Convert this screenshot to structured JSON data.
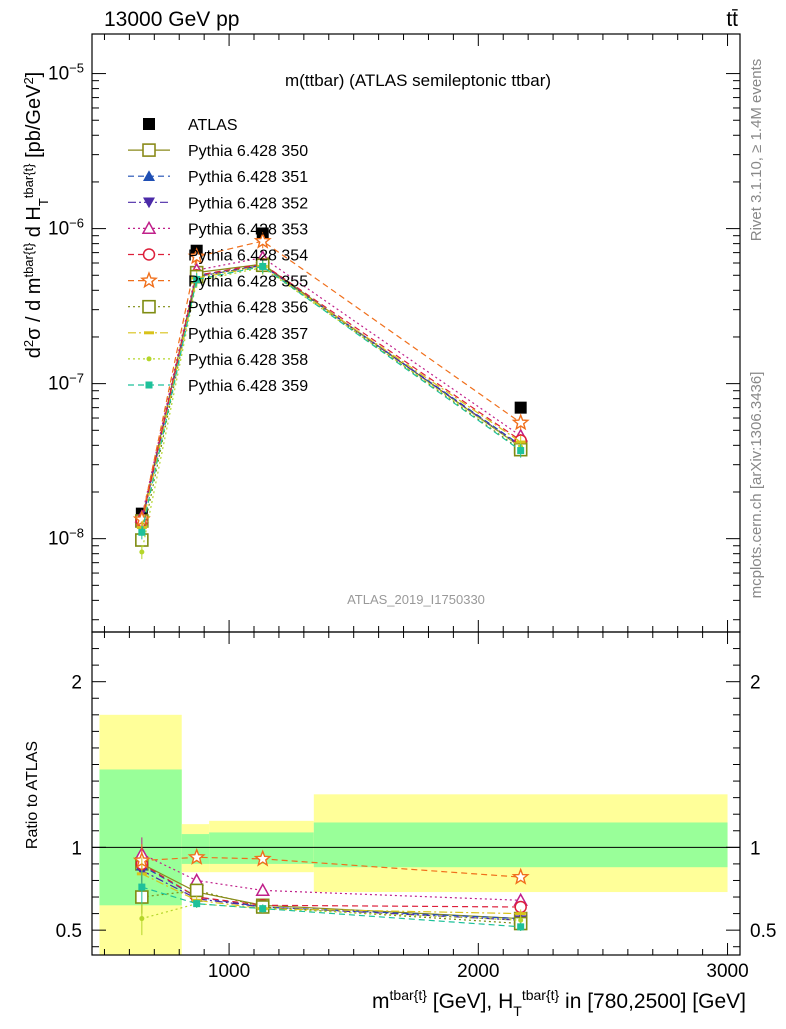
{
  "header": {
    "energy": "13000 GeV pp",
    "process": "tt̄",
    "plot_title": "m(ttbar) (ATLAS semileptonic ttbar)",
    "analysis_id": "ATLAS_2019_I1750330",
    "side_rivet": "Rivet 3.1.10, ≥ 1.4M events",
    "side_mcplots": "mcplots.cern.ch [arXiv:1306.3436]"
  },
  "colors": {
    "data": "#000000",
    "band_inner": "#99ff99",
    "band_outer": "#ffff99"
  },
  "chart_data": [
    {
      "type": "scatter",
      "panel": "main",
      "xlabel": "m^{tbar{t}} [GeV], H_T^{tbar{t}} in [780,2500] [GeV]",
      "ylabel": "d²σ / d m^{tbar{t}} d H_T^{tbar{t}} [pb/GeV²]",
      "yscale": "log",
      "xlim": [
        450,
        3050
      ],
      "ylim": [
        2.5e-09,
        1.8e-05
      ],
      "x_ticks": [
        1000,
        2000,
        3000
      ],
      "y_ticks": [
        "10^{-8}",
        "10^{-7}",
        "10^{-6}",
        "10^{-5}"
      ],
      "x": [
        650,
        870,
        1135,
        2170
      ],
      "legend_position": "upper-left",
      "series": [
        {
          "name": "ATLAS",
          "color": "#000000",
          "marker": "square-filled",
          "line": "none",
          "values": [
            1.45e-08,
            7.2e-07,
            9.3e-07,
            7e-08
          ]
        },
        {
          "name": "Pythia 6.428 350",
          "color": "#8a8a1a",
          "marker": "square-open",
          "line": "solid",
          "values": [
            1.3e-08,
            5.2e-07,
            5.9e-07,
            3.9e-08
          ]
        },
        {
          "name": "Pythia 6.428 351",
          "color": "#1f4fb4",
          "marker": "triangle-up-filled",
          "line": "dashed",
          "values": [
            1.28e-08,
            5e-07,
            5.8e-07,
            4e-08
          ]
        },
        {
          "name": "Pythia 6.428 352",
          "color": "#4b2aa8",
          "marker": "triangle-down-filled",
          "line": "dashdot",
          "values": [
            1.25e-08,
            4.9e-07,
            5.8e-07,
            3.95e-08
          ]
        },
        {
          "name": "Pythia 6.428 353",
          "color": "#c0208a",
          "marker": "triangle-up-open",
          "line": "dotted",
          "values": [
            1.38e-08,
            5.4e-07,
            6.5e-07,
            4.6e-08
          ]
        },
        {
          "name": "Pythia 6.428 354",
          "color": "#dd1f3a",
          "marker": "circle-open",
          "line": "dashed",
          "values": [
            1.3e-08,
            5e-07,
            5.9e-07,
            4.3e-08
          ]
        },
        {
          "name": "Pythia 6.428 355",
          "color": "#f06f1b",
          "marker": "star-open",
          "line": "dashed",
          "values": [
            1.33e-08,
            6.6e-07,
            8.3e-07,
            5.6e-08
          ]
        },
        {
          "name": "Pythia 6.428 356",
          "color": "#7f8c12",
          "marker": "square-open",
          "line": "dotted",
          "values": [
            9.8e-09,
            4.9e-07,
            5.8e-07,
            3.75e-08
          ]
        },
        {
          "name": "Pythia 6.428 357",
          "color": "#d8c21a",
          "marker": "dash",
          "line": "dashdot",
          "values": [
            1.18e-08,
            4.8e-07,
            5.7e-07,
            4.2e-08
          ]
        },
        {
          "name": "Pythia 6.428 358",
          "color": "#b5d62a",
          "marker": "dot",
          "line": "dotted",
          "values": [
            8.2e-09,
            4.6e-07,
            5.6e-07,
            3.9e-08
          ]
        },
        {
          "name": "Pythia 6.428 359",
          "color": "#1ec19a",
          "marker": "square-small-filled",
          "line": "dashed",
          "values": [
            1.1e-08,
            4.7e-07,
            5.7e-07,
            3.7e-08
          ]
        }
      ]
    },
    {
      "type": "scatter",
      "panel": "ratio",
      "ylabel": "Ratio to ATLAS",
      "xlim": [
        450,
        3050
      ],
      "ylim": [
        0.35,
        2.3
      ],
      "x_ticks": [
        1000,
        2000,
        3000
      ],
      "y_ticks": [
        0.5,
        1,
        2
      ],
      "x": [
        650,
        870,
        1135,
        2170
      ],
      "reference_line": 1,
      "bands": [
        {
          "x": [
            480,
            810
          ],
          "inner": [
            0.65,
            1.47
          ],
          "outer": [
            0.35,
            1.8
          ]
        },
        {
          "x": [
            810,
            920
          ],
          "inner": [
            0.9,
            1.08
          ],
          "outer": [
            0.85,
            1.14
          ]
        },
        {
          "x": [
            920,
            1340
          ],
          "inner": [
            0.9,
            1.09
          ],
          "outer": [
            0.85,
            1.16
          ]
        },
        {
          "x": [
            1340,
            3000
          ],
          "inner": [
            0.88,
            1.15
          ],
          "outer": [
            0.73,
            1.32
          ]
        }
      ],
      "series": [
        {
          "name": "Pythia 6.428 350",
          "values": [
            0.9,
            0.73,
            0.65,
            0.57
          ]
        },
        {
          "name": "Pythia 6.428 351",
          "values": [
            0.89,
            0.7,
            0.64,
            0.57
          ]
        },
        {
          "name": "Pythia 6.428 352",
          "values": [
            0.86,
            0.69,
            0.64,
            0.56
          ]
        },
        {
          "name": "Pythia 6.428 353",
          "values": [
            0.96,
            0.8,
            0.74,
            0.68
          ]
        },
        {
          "name": "Pythia 6.428 354",
          "values": [
            0.9,
            0.7,
            0.65,
            0.64
          ]
        },
        {
          "name": "Pythia 6.428 355",
          "values": [
            0.92,
            0.94,
            0.93,
            0.82
          ]
        },
        {
          "name": "Pythia 6.428 356",
          "values": [
            0.7,
            0.74,
            0.64,
            0.54
          ]
        },
        {
          "name": "Pythia 6.428 357",
          "values": [
            0.84,
            0.68,
            0.63,
            0.6
          ]
        },
        {
          "name": "Pythia 6.428 358",
          "values": [
            0.57,
            0.66,
            0.63,
            0.56
          ]
        },
        {
          "name": "Pythia 6.428 359",
          "values": [
            0.76,
            0.66,
            0.63,
            0.52
          ]
        }
      ]
    }
  ]
}
